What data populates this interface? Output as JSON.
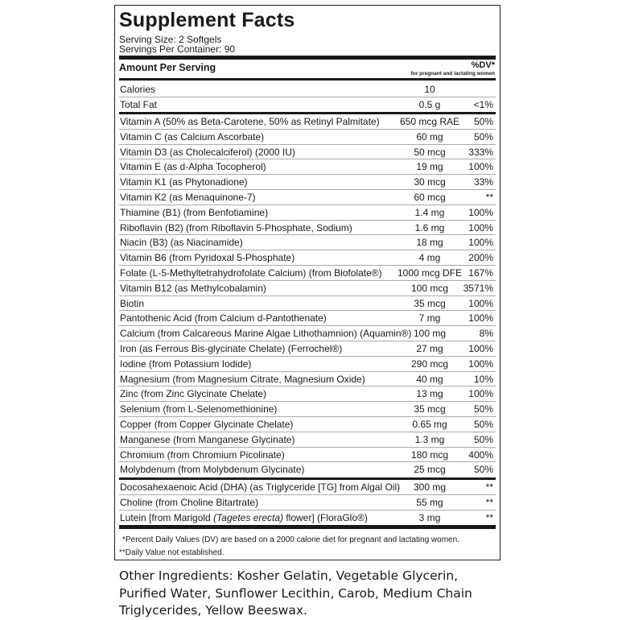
{
  "title": "Supplement Facts",
  "serving_size": "Serving Size: 2 Softgels",
  "servings_per_container": "Servings Per Container: 90",
  "amount_header": "Amount Per Serving",
  "dv_header": "%DV*",
  "dv_subheader": "for pregnant and lactating women",
  "group1": [
    {
      "name": "Calories",
      "amount": "10",
      "dv": ""
    },
    {
      "name": "Total Fat",
      "amount": "0.5 g",
      "dv": "<1%"
    }
  ],
  "group2": [
    {
      "name": "Vitamin A (50% as Beta-Carotene, 50% as Retinyl Palmitate)",
      "amount": "650 mcg RAE",
      "dv": "50%"
    },
    {
      "name": "Vitamin C (as Calcium Ascorbate)",
      "amount": "60 mg",
      "dv": "50%"
    },
    {
      "name": "Vitamin D3 (as Cholecalciferol) (2000 IU)",
      "amount": "50 mcg",
      "dv": "333%"
    },
    {
      "name": "Vitamin E (as d-Alpha Tocopherol)",
      "amount": "19 mg",
      "dv": "100%"
    },
    {
      "name": "Vitamin K1 (as Phytonadione)",
      "amount": "30 mcg",
      "dv": "33%"
    },
    {
      "name": "Vitamin K2 (as Menaquinone-7)",
      "amount": "60 mcg",
      "dv": "**"
    },
    {
      "name": "Thiamine (B1) (from Benfotiamine)",
      "amount": "1.4 mg",
      "dv": "100%"
    },
    {
      "name": "Riboflavin (B2) (from Riboflavin 5-Phosphate, Sodium)",
      "amount": "1.6 mg",
      "dv": "100%"
    },
    {
      "name": "Niacin (B3) (as Niacinamide)",
      "amount": "18 mg",
      "dv": "100%"
    },
    {
      "name": "Vitamin B6 (from Pyridoxal 5-Phosphate)",
      "amount": "4 mg",
      "dv": "200%"
    },
    {
      "name": "Folate (L-5-Methyltetrahydrofolate Calcium) (from Biofolate®)",
      "amount": "1000 mcg DFE",
      "dv": "167%"
    },
    {
      "name": "Vitamin B12 (as Methylcobalamin)",
      "amount": "100 mcg",
      "dv": "3571%"
    },
    {
      "name": "Biotin",
      "amount": "35 mcg",
      "dv": "100%"
    },
    {
      "name": "Pantothenic Acid (from Calcium d-Pantothenate)",
      "amount": "7 mg",
      "dv": "100%"
    },
    {
      "name": "Calcium (from Calcareous Marine Algae Lithothamnion) (Aquamin®)",
      "amount": "100 mg",
      "dv": "8%"
    },
    {
      "name": "Iron (as Ferrous Bis-glycinate Chelate) (Ferrochel®)",
      "amount": "27 mg",
      "dv": "100%"
    },
    {
      "name": "Iodine (from Potassium Iodide)",
      "amount": "290 mcg",
      "dv": "100%"
    },
    {
      "name": "Magnesium (from Magnesium Citrate, Magnesium Oxide)",
      "amount": "40 mg",
      "dv": "10%"
    },
    {
      "name": "Zinc (from Zinc Glycinate Chelate)",
      "amount": "13 mg",
      "dv": "100%"
    },
    {
      "name": "Selenium (from L-Selenomethionine)",
      "amount": "35 mcg",
      "dv": "50%"
    },
    {
      "name": "Copper (from Copper Glycinate Chelate)",
      "amount": "0.65 mg",
      "dv": "50%"
    },
    {
      "name": "Manganese (from Manganese Glycinate)",
      "amount": "1.3 mg",
      "dv": "50%"
    },
    {
      "name": "Chromium (from Chromium Picolinate)",
      "amount": "180 mcg",
      "dv": "400%"
    },
    {
      "name": "Molybdenum (from Molybdenum Glycinate)",
      "amount": "25 mcg",
      "dv": "50%"
    }
  ],
  "group3": [
    {
      "name": "Docosahexaenoic Acid (DHA) (as Triglyceride [TG] from Algal Oil)",
      "amount": "300 mg",
      "dv": "**"
    },
    {
      "name": "Choline (from Choline Bitartrate)",
      "amount": "55 mg",
      "dv": "**"
    },
    {
      "name": "Lutein [from Marigold (Tagetes erecta) flower] (FloraGlo®)",
      "amount": "3 mg",
      "dv": "**"
    }
  ],
  "footnote1": "*Percent Daily Values (DV) are based on a 2000 calorie diet for pregnant and lactating women.",
  "footnote2": "**Daily Value not established.",
  "other_ingredients": "Other Ingredients: Kosher Gelatin, Vegetable Glycerin, Purified Water, Sunflower Lecithin, Carob, Medium Chain Triglycerides, Yellow Beeswax."
}
